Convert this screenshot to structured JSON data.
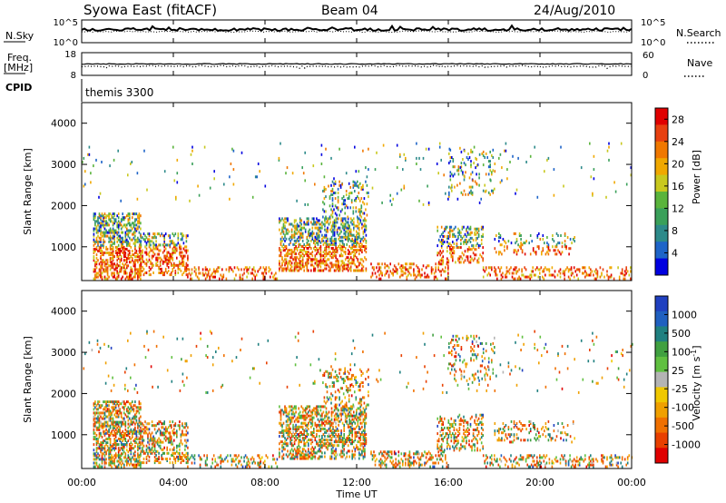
{
  "header": {
    "station": "Syowa East (fitACF)",
    "beam": "Beam 04",
    "date": "24/Aug/2010"
  },
  "top_panel": {
    "left_label": "N.Sky",
    "left_ticks": [
      "10^5",
      "10^0"
    ],
    "right_label": "N.Search",
    "right_ticks": [
      "10^5",
      "10^0"
    ],
    "line_style_n_search": "dotted"
  },
  "freq_panel": {
    "left_label_1": "Freq.",
    "left_label_2": "[MHz]",
    "left_ticks": [
      "18",
      "8"
    ],
    "right_label": "Nave",
    "right_ticks": [
      "60",
      "0"
    ]
  },
  "cpid_panel": {
    "left_label": "CPID",
    "program": "themis 3300"
  },
  "chart_data": [
    {
      "type": "heatmap",
      "panel": "power",
      "ylabel": "Slant Range [km]",
      "ylim": [
        180,
        4500
      ],
      "y_ticks": [
        "1000",
        "2000",
        "3000",
        "4000"
      ],
      "xlim_hours": [
        0,
        24
      ],
      "colorbar": {
        "label": "Power [dB]",
        "ticks": [
          "4",
          "8",
          "12",
          "16",
          "20",
          "24",
          "28"
        ],
        "range": [
          0,
          30
        ],
        "colors": [
          "#0000e0",
          "#1e64c8",
          "#2d8a8a",
          "#3aa05a",
          "#5ab43c",
          "#c8c81e",
          "#f0a800",
          "#f07800",
          "#e84010",
          "#e00000"
        ]
      }
    },
    {
      "type": "heatmap",
      "panel": "velocity",
      "ylabel": "Slant Range [km]",
      "ylim": [
        180,
        4500
      ],
      "y_ticks": [
        "1000",
        "2000",
        "3000",
        "4000"
      ],
      "xlim_hours": [
        0,
        24
      ],
      "colorbar": {
        "label": "Velocity [m s^-1]",
        "ticks": [
          "1000",
          "500",
          "100",
          "25",
          "-25",
          "-100",
          "-500",
          "-1000"
        ],
        "colors": [
          "#2040c0",
          "#2060c0",
          "#208080",
          "#40a040",
          "#60c040",
          "#b4b4b4",
          "#f0c800",
          "#f0a000",
          "#f07000",
          "#e84000",
          "#e00000"
        ]
      }
    }
  ],
  "x_axis": {
    "label": "Time UT",
    "ticks": [
      "00:00",
      "04:00",
      "08:00",
      "12:00",
      "16:00",
      "20:00",
      "00:00"
    ]
  },
  "colors": {
    "axis": "#000000",
    "background": "#ffffff"
  }
}
